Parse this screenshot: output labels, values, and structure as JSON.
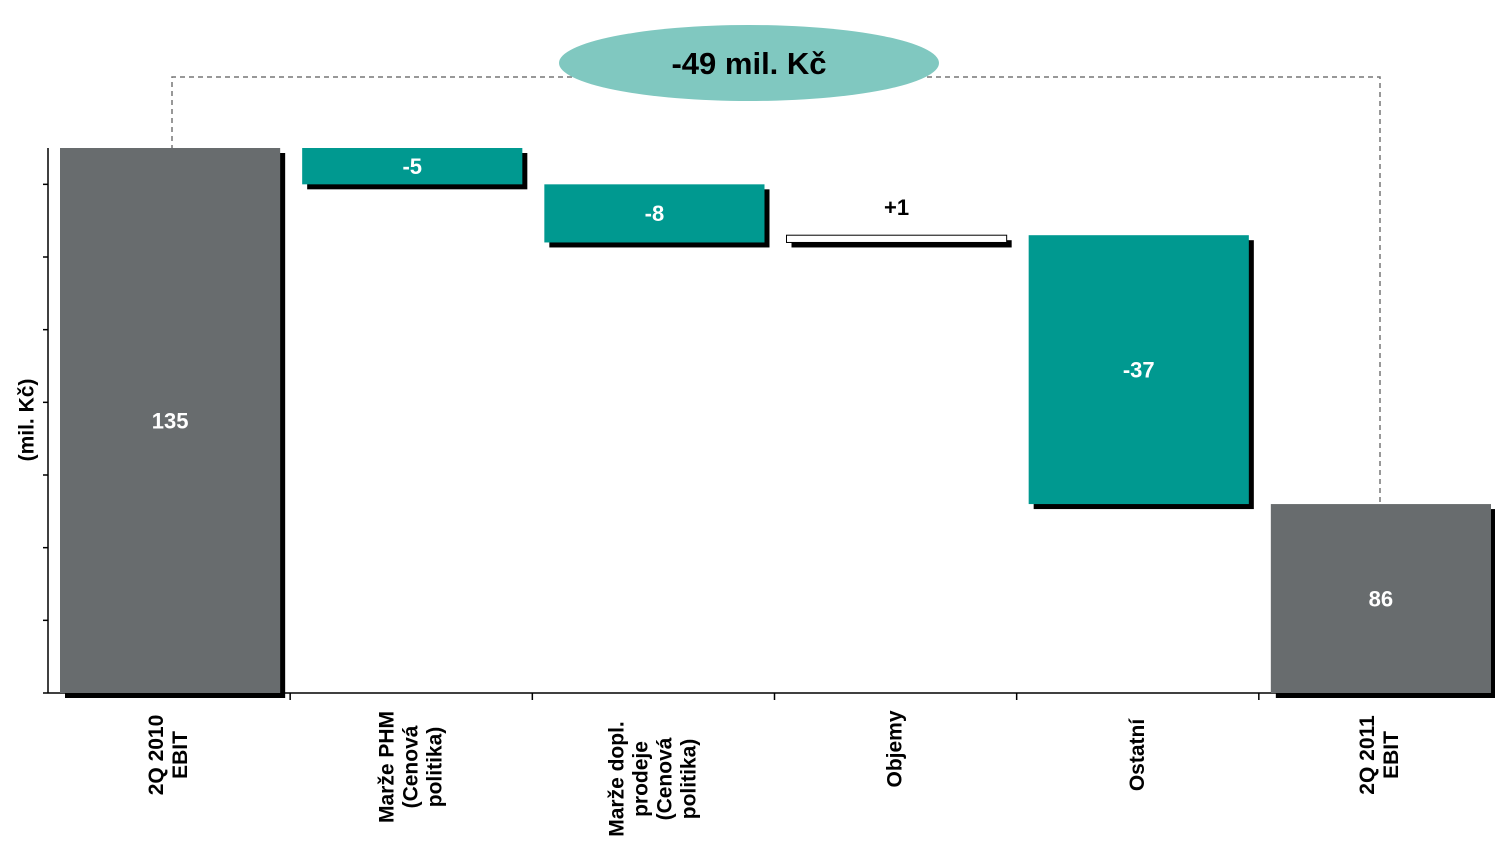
{
  "chart_data": {
    "type": "waterfall",
    "annotation": "-49 mil. Kč",
    "y_axis_label": "(mil. Kč)",
    "categories": [
      "2Q 2010\nEBIT",
      "Marže PHM\n(Cenová\npolitika)",
      "Marže dopl.\nprodeje\n(Cenová\npolitika)",
      "Objemy",
      "Ostatní",
      "2Q 2011\nEBIT"
    ],
    "values": [
      135,
      -5,
      -8,
      1,
      -37,
      86
    ],
    "value_labels": [
      "135",
      "-5",
      "-8",
      "+1",
      "-37",
      "86"
    ],
    "total_color": "#686c6e",
    "decrease_color": "#009990",
    "increase_color": "#ffffff",
    "annotation_color": "#80c8c0",
    "ylim": [
      60,
      135
    ],
    "yticks": [
      60,
      70,
      80,
      90,
      100,
      110,
      120,
      130
    ]
  }
}
